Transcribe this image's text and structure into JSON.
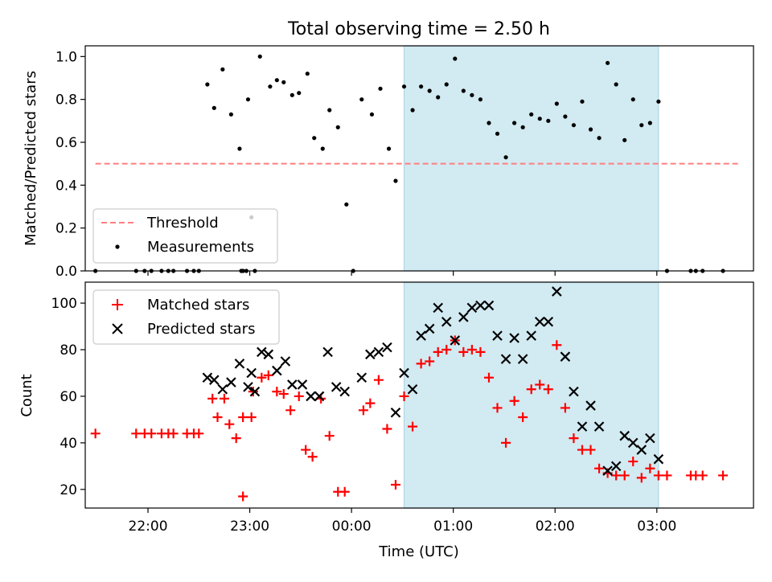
{
  "colors": {
    "threshold": "#ff7f7f",
    "measurement": "#000000",
    "matched": "#ff0000",
    "predicted": "#000000",
    "shade": "#add8e6"
  },
  "chart_data": [
    {
      "type": "scatter",
      "title": "Total observing time = 2.50 h",
      "ylabel": "Matched/Predicted stars",
      "xlabel": "",
      "xlim": [
        "21:23",
        "03:57"
      ],
      "ylim": [
        0,
        1.05
      ],
      "yticks": [
        "0.0",
        "0.2",
        "0.4",
        "0.6",
        "0.8",
        "1.0"
      ],
      "shaded_interval": [
        "00:31",
        "03:01"
      ],
      "legend": {
        "position": "lower-left",
        "entries": [
          "Threshold",
          "Measurements"
        ]
      },
      "threshold": {
        "name": "Threshold",
        "x": [
          "21:29",
          "03:49"
        ],
        "y": 0.5,
        "style": "dashed"
      },
      "series": [
        {
          "name": "Measurements",
          "points": [
            [
              "21:29",
              0.0
            ],
            [
              "21:53",
              0.0
            ],
            [
              "21:58",
              0.0
            ],
            [
              "22:02",
              0.0
            ],
            [
              "22:08",
              0.0
            ],
            [
              "22:12",
              0.0
            ],
            [
              "22:15",
              0.0
            ],
            [
              "22:23",
              0.0
            ],
            [
              "22:27",
              0.0
            ],
            [
              "22:30",
              0.0
            ],
            [
              "22:35",
              0.87
            ],
            [
              "22:39",
              0.76
            ],
            [
              "22:44",
              0.94
            ],
            [
              "22:49",
              0.73
            ],
            [
              "22:54",
              0.57
            ],
            [
              "22:59",
              0.8
            ],
            [
              "22:56",
              0.0
            ],
            [
              "22:58",
              0.0
            ],
            [
              "22:55",
              0.0
            ],
            [
              "23:03",
              0.0
            ],
            [
              "23:06",
              1.0
            ],
            [
              "23:01",
              0.25
            ],
            [
              "23:12",
              0.86
            ],
            [
              "23:16",
              0.89
            ],
            [
              "23:20",
              0.88
            ],
            [
              "23:25",
              0.82
            ],
            [
              "23:29",
              0.83
            ],
            [
              "23:34",
              0.92
            ],
            [
              "23:38",
              0.62
            ],
            [
              "23:43",
              0.57
            ],
            [
              "23:47",
              0.75
            ],
            [
              "23:52",
              0.67
            ],
            [
              "23:57",
              0.31
            ],
            [
              "00:01",
              0.0
            ],
            [
              "00:06",
              0.8
            ],
            [
              "00:12",
              0.73
            ],
            [
              "00:17",
              0.85
            ],
            [
              "00:22",
              0.57
            ],
            [
              "00:26",
              0.42
            ],
            [
              "00:31",
              0.86
            ],
            [
              "00:36",
              0.75
            ],
            [
              "00:41",
              0.86
            ],
            [
              "00:46",
              0.84
            ],
            [
              "00:51",
              0.81
            ],
            [
              "00:56",
              0.87
            ],
            [
              "01:01",
              0.99
            ],
            [
              "01:06",
              0.84
            ],
            [
              "01:11",
              0.82
            ],
            [
              "01:16",
              0.8
            ],
            [
              "01:21",
              0.69
            ],
            [
              "01:26",
              0.64
            ],
            [
              "01:31",
              0.53
            ],
            [
              "01:36",
              0.69
            ],
            [
              "01:41",
              0.67
            ],
            [
              "01:46",
              0.73
            ],
            [
              "01:51",
              0.71
            ],
            [
              "01:56",
              0.7
            ],
            [
              "02:01",
              0.78
            ],
            [
              "02:06",
              0.72
            ],
            [
              "02:11",
              0.68
            ],
            [
              "02:16",
              0.79
            ],
            [
              "02:21",
              0.66
            ],
            [
              "02:26",
              0.62
            ],
            [
              "02:31",
              0.97
            ],
            [
              "02:36",
              0.87
            ],
            [
              "02:41",
              0.61
            ],
            [
              "02:46",
              0.8
            ],
            [
              "02:51",
              0.68
            ],
            [
              "02:56",
              0.69
            ],
            [
              "03:01",
              0.79
            ],
            [
              "03:06",
              0.0
            ],
            [
              "03:20",
              0.0
            ],
            [
              "03:23",
              0.0
            ],
            [
              "03:27",
              0.0
            ],
            [
              "03:39",
              0.0
            ]
          ]
        }
      ]
    },
    {
      "type": "scatter",
      "title": "",
      "xlabel": "Time (UTC)",
      "ylabel": "Count",
      "xlim": [
        "21:23",
        "03:57"
      ],
      "ylim": [
        12,
        109
      ],
      "xticks": [
        "22:00",
        "23:00",
        "00:00",
        "01:00",
        "02:00",
        "03:00"
      ],
      "yticks": [
        "20",
        "40",
        "60",
        "80",
        "100"
      ],
      "shaded_interval": [
        "00:31",
        "03:01"
      ],
      "legend": {
        "position": "upper-left",
        "entries": [
          "Matched stars",
          "Predicted stars"
        ]
      },
      "series": [
        {
          "name": "Matched stars",
          "marker": "+",
          "points": [
            [
              "21:29",
              44
            ],
            [
              "21:53",
              44
            ],
            [
              "21:58",
              44
            ],
            [
              "22:02",
              44
            ],
            [
              "22:08",
              44
            ],
            [
              "22:12",
              44
            ],
            [
              "22:15",
              44
            ],
            [
              "22:23",
              44
            ],
            [
              "22:27",
              44
            ],
            [
              "22:30",
              44
            ],
            [
              "22:38",
              59
            ],
            [
              "22:41",
              51
            ],
            [
              "22:45",
              59
            ],
            [
              "22:48",
              48
            ],
            [
              "22:52",
              42
            ],
            [
              "22:56",
              51
            ],
            [
              "23:01",
              51
            ],
            [
              "22:56",
              17
            ],
            [
              "23:02",
              62
            ],
            [
              "23:07",
              68
            ],
            [
              "23:11",
              69
            ],
            [
              "23:16",
              62
            ],
            [
              "23:20",
              61
            ],
            [
              "23:24",
              54
            ],
            [
              "23:29",
              60
            ],
            [
              "23:33",
              37
            ],
            [
              "23:37",
              34
            ],
            [
              "23:42",
              59
            ],
            [
              "23:47",
              43
            ],
            [
              "23:52",
              19
            ],
            [
              "23:56",
              19
            ],
            [
              "00:07",
              54
            ],
            [
              "00:11",
              57
            ],
            [
              "00:16",
              67
            ],
            [
              "00:21",
              46
            ],
            [
              "00:26",
              22
            ],
            [
              "00:31",
              60
            ],
            [
              "00:36",
              47
            ],
            [
              "00:41",
              74
            ],
            [
              "00:46",
              75
            ],
            [
              "00:51",
              79
            ],
            [
              "00:56",
              80
            ],
            [
              "01:01",
              84
            ],
            [
              "01:06",
              79
            ],
            [
              "01:11",
              80
            ],
            [
              "01:16",
              79
            ],
            [
              "01:21",
              68
            ],
            [
              "01:26",
              55
            ],
            [
              "01:31",
              40
            ],
            [
              "01:36",
              58
            ],
            [
              "01:41",
              51
            ],
            [
              "01:46",
              63
            ],
            [
              "01:51",
              65
            ],
            [
              "01:56",
              63
            ],
            [
              "02:01",
              82
            ],
            [
              "02:06",
              55
            ],
            [
              "02:11",
              42
            ],
            [
              "02:16",
              37
            ],
            [
              "02:21",
              37
            ],
            [
              "02:26",
              29
            ],
            [
              "02:31",
              27
            ],
            [
              "02:36",
              26
            ],
            [
              "02:41",
              26
            ],
            [
              "02:46",
              32
            ],
            [
              "02:51",
              25
            ],
            [
              "02:56",
              29
            ],
            [
              "03:01",
              26
            ],
            [
              "03:06",
              26
            ],
            [
              "03:20",
              26
            ],
            [
              "03:23",
              26
            ],
            [
              "03:27",
              26
            ],
            [
              "03:39",
              26
            ]
          ]
        },
        {
          "name": "Predicted stars",
          "marker": "x",
          "points": [
            [
              "22:35",
              68
            ],
            [
              "22:39",
              67
            ],
            [
              "22:44",
              63
            ],
            [
              "22:49",
              66
            ],
            [
              "22:54",
              74
            ],
            [
              "22:59",
              64
            ],
            [
              "23:01",
              70
            ],
            [
              "23:03",
              62
            ],
            [
              "23:07",
              79
            ],
            [
              "23:11",
              78
            ],
            [
              "23:16",
              71
            ],
            [
              "23:21",
              75
            ],
            [
              "23:25",
              65
            ],
            [
              "23:31",
              65
            ],
            [
              "23:36",
              60
            ],
            [
              "23:41",
              60
            ],
            [
              "23:46",
              79
            ],
            [
              "23:51",
              64
            ],
            [
              "23:56",
              62
            ],
            [
              "00:06",
              68
            ],
            [
              "00:11",
              78
            ],
            [
              "00:16",
              79
            ],
            [
              "00:21",
              81
            ],
            [
              "00:26",
              53
            ],
            [
              "00:31",
              70
            ],
            [
              "00:36",
              63
            ],
            [
              "00:41",
              86
            ],
            [
              "00:46",
              89
            ],
            [
              "00:51",
              98
            ],
            [
              "00:56",
              92
            ],
            [
              "01:01",
              84
            ],
            [
              "01:06",
              94
            ],
            [
              "01:11",
              98
            ],
            [
              "01:16",
              99
            ],
            [
              "01:21",
              99
            ],
            [
              "01:26",
              86
            ],
            [
              "01:31",
              76
            ],
            [
              "01:36",
              85
            ],
            [
              "01:41",
              76
            ],
            [
              "01:46",
              86
            ],
            [
              "01:51",
              92
            ],
            [
              "01:56",
              92
            ],
            [
              "02:01",
              105
            ],
            [
              "02:06",
              77
            ],
            [
              "02:11",
              62
            ],
            [
              "02:16",
              47
            ],
            [
              "02:21",
              56
            ],
            [
              "02:26",
              47
            ],
            [
              "02:31",
              28
            ],
            [
              "02:36",
              30
            ],
            [
              "02:41",
              43
            ],
            [
              "02:46",
              40
            ],
            [
              "02:51",
              37
            ],
            [
              "02:56",
              42
            ],
            [
              "03:01",
              33
            ]
          ]
        }
      ]
    }
  ]
}
